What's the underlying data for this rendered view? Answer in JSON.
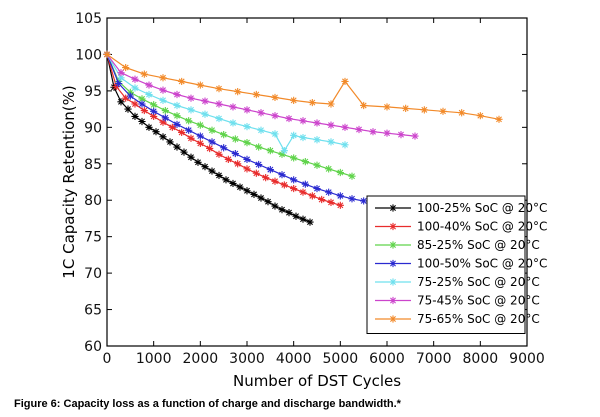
{
  "chart_data": {
    "type": "line",
    "xlabel": "Number of DST Cycles",
    "ylabel": "1C Capacity Retention(%)",
    "xlim": [
      0,
      9000
    ],
    "ylim": [
      60,
      105
    ],
    "x_ticks": [
      0,
      1000,
      2000,
      3000,
      4000,
      5000,
      6000,
      7000,
      8000,
      9000
    ],
    "y_ticks": [
      60,
      65,
      70,
      75,
      80,
      85,
      90,
      95,
      100,
      105
    ],
    "grid": false,
    "legend_position": "bottom-right",
    "series": [
      {
        "name": "100-25% SoC @ 20°C",
        "color": "#000000",
        "marker": "star",
        "x": [
          0,
          150,
          300,
          450,
          600,
          750,
          900,
          1050,
          1200,
          1350,
          1500,
          1650,
          1800,
          1950,
          2100,
          2250,
          2400,
          2550,
          2700,
          2850,
          3000,
          3150,
          3300,
          3450,
          3600,
          3750,
          3900,
          4050,
          4200,
          4350
        ],
        "values": [
          100,
          95.5,
          93.5,
          92.5,
          91.5,
          90.8,
          90.0,
          89.4,
          88.7,
          88.0,
          87.3,
          86.6,
          85.9,
          85.2,
          84.6,
          84.0,
          83.4,
          82.8,
          82.3,
          81.8,
          81.3,
          80.8,
          80.3,
          79.8,
          79.2,
          78.7,
          78.3,
          77.8,
          77.4,
          77.0
        ]
      },
      {
        "name": "100-40% SoC @ 20°C",
        "color": "#e82c2c",
        "marker": "star",
        "x": [
          0,
          200,
          400,
          600,
          800,
          1000,
          1200,
          1400,
          1600,
          1800,
          2000,
          2200,
          2400,
          2600,
          2800,
          3000,
          3200,
          3400,
          3600,
          3800,
          4000,
          4200,
          4400,
          4600,
          4800,
          5000
        ],
        "values": [
          100,
          95.6,
          94.0,
          93.2,
          92.3,
          91.5,
          90.7,
          90.0,
          89.3,
          88.5,
          87.8,
          87.1,
          86.3,
          85.6,
          85.0,
          84.3,
          83.7,
          83.1,
          82.6,
          82.1,
          81.6,
          81.1,
          80.6,
          80.1,
          79.7,
          79.3
        ]
      },
      {
        "name": "85-25% SoC @ 20°C",
        "color": "#5fd34a",
        "marker": "star",
        "x": [
          0,
          250,
          500,
          750,
          1000,
          1250,
          1500,
          1750,
          2000,
          2250,
          2500,
          2750,
          3000,
          3250,
          3500,
          3750,
          4000,
          4250,
          4500,
          4750,
          5000,
          5250
        ],
        "values": [
          100,
          96.3,
          94.8,
          93.9,
          93.1,
          92.3,
          91.6,
          90.9,
          90.3,
          89.6,
          89.0,
          88.4,
          87.9,
          87.3,
          86.8,
          86.3,
          85.8,
          85.3,
          84.8,
          84.3,
          83.8,
          83.3
        ]
      },
      {
        "name": "100-50% SoC @ 20°C",
        "color": "#2a2ad0",
        "marker": "star",
        "x": [
          0,
          250,
          500,
          750,
          1000,
          1250,
          1500,
          1750,
          2000,
          2250,
          2500,
          2750,
          3000,
          3250,
          3500,
          3750,
          4000,
          4250,
          4500,
          4750,
          5000,
          5250,
          5500
        ],
        "values": [
          100,
          96.0,
          94.3,
          93.2,
          92.2,
          91.3,
          90.4,
          89.6,
          88.8,
          88.0,
          87.2,
          86.4,
          85.6,
          84.9,
          84.2,
          83.5,
          82.8,
          82.2,
          81.6,
          81.1,
          80.6,
          80.2,
          79.9
        ]
      },
      {
        "name": "75-25% SoC @ 20°C",
        "color": "#6fe0ee",
        "marker": "star",
        "x": [
          0,
          300,
          600,
          900,
          1200,
          1500,
          1800,
          2100,
          2400,
          2700,
          3000,
          3300,
          3600,
          3800,
          4000,
          4200,
          4500,
          4800,
          5100
        ],
        "values": [
          100,
          96.8,
          95.4,
          94.5,
          93.7,
          93.0,
          92.4,
          91.8,
          91.2,
          90.6,
          90.1,
          89.6,
          89.1,
          86.8,
          88.9,
          88.6,
          88.3,
          88.0,
          87.6
        ]
      },
      {
        "name": "75-45% SoC @ 20°C",
        "color": "#cc44cc",
        "marker": "star",
        "x": [
          0,
          300,
          600,
          900,
          1200,
          1500,
          1800,
          2100,
          2400,
          2700,
          3000,
          3300,
          3600,
          3900,
          4200,
          4500,
          4800,
          5100,
          5400,
          5700,
          6000,
          6300,
          6600
        ],
        "values": [
          100,
          97.5,
          96.6,
          95.8,
          95.1,
          94.5,
          94.0,
          93.6,
          93.2,
          92.8,
          92.4,
          92.0,
          91.6,
          91.2,
          90.9,
          90.6,
          90.3,
          90.0,
          89.7,
          89.4,
          89.2,
          89.0,
          88.8
        ]
      },
      {
        "name": "75-65% SoC @ 20°C",
        "color": "#f28a2a",
        "marker": "star",
        "x": [
          0,
          400,
          800,
          1200,
          1600,
          2000,
          2400,
          2800,
          3200,
          3600,
          4000,
          4400,
          4800,
          5100,
          5500,
          6000,
          6400,
          6800,
          7200,
          7600,
          8000,
          8400
        ],
        "values": [
          100,
          98.2,
          97.3,
          96.8,
          96.3,
          95.8,
          95.3,
          94.9,
          94.5,
          94.1,
          93.7,
          93.4,
          93.2,
          96.3,
          93.0,
          92.8,
          92.6,
          92.4,
          92.2,
          92.0,
          91.6,
          91.1
        ]
      }
    ]
  },
  "caption": "Figure 6: Capacity loss as a function of charge and discharge bandwidth.*"
}
